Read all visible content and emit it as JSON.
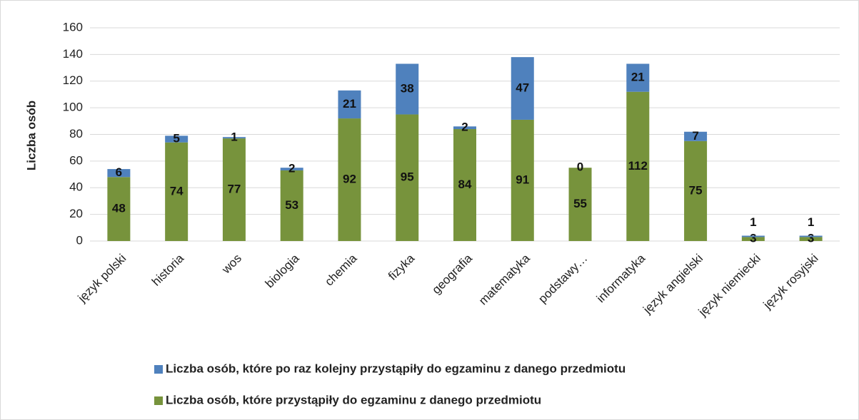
{
  "chart_data": {
    "type": "stacked_bar",
    "ylabel": "Liczba osób",
    "categories": [
      "język polski",
      "historia",
      "wos",
      "biologia",
      "chemia",
      "fizyka",
      "geografia",
      "matematyka",
      "podstawy…",
      "informatyka",
      "język angielski",
      "język niemiecki",
      "język rosyjski"
    ],
    "series": [
      {
        "name": "Liczba osób, które przystąpiły do egzaminu z danego przedmiotu",
        "color": "#77933c",
        "values": [
          48,
          74,
          77,
          53,
          92,
          95,
          84,
          91,
          55,
          112,
          75,
          3,
          3
        ]
      },
      {
        "name": "Liczba osób, które po raz kolejny przystąpiły do egzaminu z danego przedmiotu",
        "color": "#4f81bd",
        "values": [
          6,
          5,
          1,
          2,
          21,
          38,
          2,
          47,
          0,
          21,
          7,
          1,
          1
        ]
      }
    ],
    "ylim": [
      0,
      160
    ],
    "yticks": [
      0,
      20,
      40,
      60,
      80,
      100,
      120,
      140,
      160
    ],
    "grid": true
  }
}
